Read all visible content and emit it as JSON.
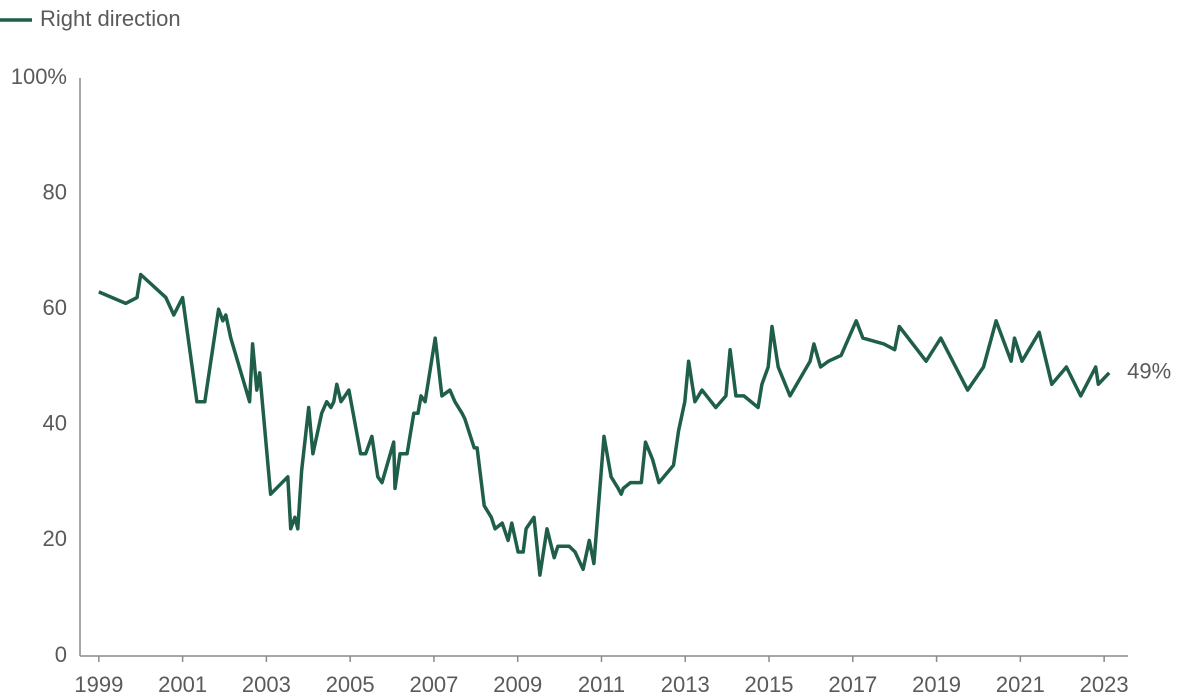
{
  "chart_data": {
    "type": "line",
    "x": [
      1999.0,
      1999.64,
      1999.91,
      2000.0,
      2000.6,
      2000.79,
      2001.0,
      2001.34,
      2001.53,
      2001.86,
      2001.96,
      2002.03,
      2002.15,
      2002.6,
      2002.67,
      2002.77,
      2002.84,
      2003.1,
      2003.51,
      2003.58,
      2003.68,
      2003.75,
      2003.84,
      2004.01,
      2004.11,
      2004.32,
      2004.44,
      2004.54,
      2004.61,
      2004.68,
      2004.78,
      2004.97,
      2005.25,
      2005.37,
      2005.52,
      2005.66,
      2005.76,
      2006.04,
      2006.07,
      2006.19,
      2006.36,
      2006.52,
      2006.62,
      2006.69,
      2006.79,
      2007.03,
      2007.19,
      2007.38,
      2007.5,
      2007.67,
      2007.74,
      2007.96,
      2008.03,
      2008.2,
      2008.37,
      2008.46,
      2008.63,
      2008.77,
      2008.86,
      2009.01,
      2009.13,
      2009.2,
      2009.39,
      2009.53,
      2009.7,
      2009.87,
      2009.96,
      2010.23,
      2010.37,
      2010.56,
      2010.71,
      2010.82,
      2011.06,
      2011.23,
      2011.4,
      2011.47,
      2011.52,
      2011.69,
      2011.95,
      2012.05,
      2012.22,
      2012.37,
      2012.72,
      2012.84,
      2012.99,
      2013.08,
      2013.23,
      2013.4,
      2013.73,
      2013.97,
      2014.07,
      2014.21,
      2014.4,
      2014.74,
      2014.83,
      2014.98,
      2015.07,
      2015.22,
      2015.5,
      2015.98,
      2016.07,
      2016.23,
      2016.42,
      2016.72,
      2016.84,
      2017.08,
      2017.24,
      2017.74,
      2018.0,
      2018.11,
      2018.75,
      2019.1,
      2019.74,
      2020.12,
      2020.42,
      2020.78,
      2020.86,
      2021.04,
      2021.45,
      2021.75,
      2022.1,
      2022.44,
      2022.8,
      2022.86,
      2023.12
    ],
    "series": [
      {
        "name": "Right direction",
        "color": "#1f5f4a",
        "values": [
          63,
          61,
          62,
          66,
          62,
          59,
          62,
          44,
          44,
          60,
          58,
          59,
          55,
          44,
          54,
          46,
          49,
          28,
          31,
          22,
          24,
          22,
          32,
          43,
          35,
          42,
          44,
          43,
          44,
          47,
          44,
          46,
          35,
          35,
          38,
          31,
          30,
          37,
          29,
          35,
          35,
          42,
          42,
          45,
          44,
          55,
          45,
          46,
          44,
          42,
          41,
          36,
          36,
          26,
          24,
          22,
          23,
          20,
          23,
          18,
          18,
          22,
          24,
          14,
          22,
          17,
          19,
          19,
          18,
          15,
          20,
          16,
          38,
          31,
          29,
          28,
          29,
          30,
          30,
          37,
          34,
          30,
          33,
          39,
          44,
          51,
          44,
          46,
          43,
          45,
          53,
          45,
          45,
          43,
          47,
          50,
          57,
          50,
          45,
          51,
          54,
          50,
          51,
          52,
          54,
          58,
          55,
          54,
          53,
          57,
          51,
          55,
          46,
          50,
          58,
          51,
          55,
          51,
          56,
          47,
          50,
          45,
          50,
          47,
          49
        ],
        "value_labels": [
          null,
          null,
          null,
          null,
          null,
          null,
          null,
          null,
          null,
          null,
          null,
          null,
          null,
          null,
          null,
          null,
          null,
          null,
          null,
          null,
          null,
          null,
          null,
          null,
          null,
          null,
          null,
          null,
          null,
          null,
          null,
          null,
          null,
          null,
          null,
          null,
          null,
          null,
          null,
          null,
          null,
          null,
          null,
          null,
          null,
          null,
          null,
          null,
          null,
          null,
          null,
          null,
          null,
          null,
          null,
          null,
          null,
          null,
          null,
          null,
          null,
          null,
          null,
          null,
          null,
          null,
          null,
          null,
          null,
          null,
          null,
          null,
          null,
          null,
          null,
          null,
          null,
          null,
          null,
          null,
          null,
          null,
          null,
          null,
          null,
          null,
          null,
          null,
          null,
          null,
          null,
          null,
          null,
          null,
          null,
          null,
          null,
          null,
          null,
          null,
          null,
          null,
          null,
          null,
          null,
          null,
          null,
          null,
          null,
          null,
          null,
          null,
          null,
          null,
          null,
          null,
          null,
          null,
          null,
          null,
          null,
          null,
          null,
          null,
          "49%"
        ]
      }
    ],
    "xlim": [
      1998.55,
      2023.57
    ],
    "xticks": [
      1999,
      2001,
      2003,
      2005,
      2007,
      2009,
      2011,
      2013,
      2015,
      2017,
      2019,
      2021,
      2023
    ],
    "ylim": [
      0,
      100
    ],
    "yticks": [
      0,
      20,
      40,
      60,
      80,
      {
        "value": 100,
        "label": "100%"
      }
    ],
    "grid": false,
    "legend": "top-left"
  }
}
